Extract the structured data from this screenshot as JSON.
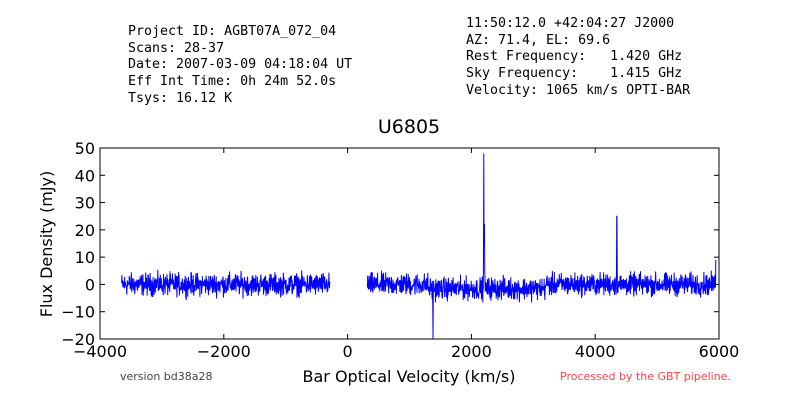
{
  "header_left": [
    "Project ID: AGBT07A_072_04",
    "Scans: 28-37",
    "Date: 2007-03-09 04:18:04 UT",
    "Eff Int Time: 0h 24m 52.0s",
    "Tsys: 16.12 K"
  ],
  "header_right": [
    "11:50:12.0 +42:04:27 J2000",
    "AZ: 71.4, EL: 69.6",
    "Rest Frequency:   1.420 GHz",
    "Sky Frequency:    1.415 GHz",
    "Velocity: 1065 km/s OPTI-BAR"
  ],
  "footer": {
    "version": "version bd38a28",
    "pipeline": "Processed by the GBT pipeline.",
    "pipeline_color": "#ff4444"
  },
  "chart_data": {
    "type": "line",
    "title": "U6805",
    "xlabel": "Bar Optical Velocity (km/s)",
    "ylabel": "Flux Density (mJy)",
    "xlim": [
      -4000,
      6000
    ],
    "ylim": [
      -20,
      50
    ],
    "xticks": [
      "−4000",
      "−2000",
      "0",
      "2000",
      "4000",
      "6000"
    ],
    "xtick_values": [
      -4000,
      -2000,
      0,
      2000,
      4000,
      6000
    ],
    "yticks": [
      "−20",
      "−10",
      "0",
      "10",
      "20",
      "30",
      "40",
      "50"
    ],
    "ytick_values": [
      -20,
      -10,
      0,
      10,
      20,
      30,
      40,
      50
    ],
    "grid": false,
    "line_color": "#0000ff",
    "series": [
      {
        "segments": [
          {
            "x_range": [
              -3650,
              -280
            ],
            "noise_amplitude": 2.5
          },
          {
            "x_range": [
              320,
              5950
            ],
            "noise_amplitude": 2.5
          }
        ],
        "features": [
          {
            "x": 1380,
            "y": -20
          },
          {
            "x": 2200,
            "y": 48
          },
          {
            "x": 2210,
            "y": 22
          },
          {
            "x": 4350,
            "y": 25
          },
          {
            "x": 5950,
            "y": 9
          }
        ]
      }
    ]
  }
}
